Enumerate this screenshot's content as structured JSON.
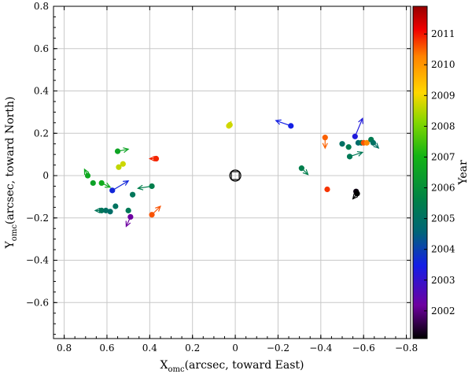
{
  "chart_data": {
    "type": "scatter",
    "title": "",
    "xlabel_main": "X",
    "xlabel_sub": "omc",
    "xlabel_rest": "(arcsec, toward East)",
    "ylabel_main": "Y",
    "ylabel_sub": "omc",
    "ylabel_rest": "(arcsec, toward North)",
    "xlim": [
      0.85,
      -0.82
    ],
    "ylim": [
      -0.77,
      0.8
    ],
    "x_inverted": true,
    "grid": true,
    "xticks": [
      0.8,
      0.6,
      0.4,
      0.2,
      0,
      -0.2,
      -0.4,
      -0.6,
      -0.8
    ],
    "xtick_labels": [
      "0.8",
      "0.6",
      "0.4",
      "0.2",
      "0",
      "−0.2",
      "−0.4",
      "−0.6",
      "−0.8"
    ],
    "yticks": [
      0.8,
      0.6,
      0.4,
      0.2,
      0,
      -0.2,
      -0.4,
      -0.6
    ],
    "ytick_labels": [
      "0.8",
      "0.6",
      "0.4",
      "0.2",
      "0",
      "−0.2",
      "−0.4",
      "−0.6"
    ],
    "colorbar": {
      "label": "Year",
      "range": [
        2001.1,
        2011.9
      ],
      "ticks": [
        2002,
        2003,
        2004,
        2005,
        2006,
        2007,
        2008,
        2009,
        2010,
        2011
      ],
      "tick_labels": [
        "2002",
        "2003",
        "2004",
        "2005",
        "2006",
        "2007",
        "2008",
        "2009",
        "2010",
        "2011"
      ]
    },
    "origin_marker": {
      "x": 0,
      "y": 0
    },
    "points": [
      {
        "x": 0.03,
        "y": 0.235,
        "year": 2008.8,
        "dx": -0.01,
        "dy": 0.02
      },
      {
        "x": 0.025,
        "y": 0.24,
        "year": 2008.7,
        "dx": 0,
        "dy": 0
      },
      {
        "x": -0.26,
        "y": 0.235,
        "year": 2003.5,
        "dx": 0.07,
        "dy": 0.025
      },
      {
        "x": 0.55,
        "y": 0.115,
        "year": 2006.6,
        "dx": -0.05,
        "dy": 0.01
      },
      {
        "x": 0.525,
        "y": 0.055,
        "year": 2008.7,
        "dx": 0,
        "dy": 0
      },
      {
        "x": 0.545,
        "y": 0.04,
        "year": 2008.6,
        "dx": 0,
        "dy": 0
      },
      {
        "x": 0.69,
        "y": 0.0,
        "year": 2006.7,
        "dx": 0.015,
        "dy": 0.03
      },
      {
        "x": 0.665,
        "y": -0.035,
        "year": 2006.5,
        "dx": 0,
        "dy": 0
      },
      {
        "x": 0.625,
        "y": -0.035,
        "year": 2006.8,
        "dx": -0.04,
        "dy": -0.02
      },
      {
        "x": 0.575,
        "y": -0.07,
        "year": 2003.6,
        "dx": -0.075,
        "dy": 0.045
      },
      {
        "x": 0.39,
        "y": -0.05,
        "year": 2005.5,
        "dx": 0.065,
        "dy": -0.01
      },
      {
        "x": 0.48,
        "y": -0.09,
        "year": 2005.2,
        "dx": 0,
        "dy": 0
      },
      {
        "x": 0.37,
        "y": 0.08,
        "year": 2010.9,
        "dx": 0.03,
        "dy": 0
      },
      {
        "x": 0.39,
        "y": -0.185,
        "year": 2010.6,
        "dx": -0.04,
        "dy": 0.04
      },
      {
        "x": 0.49,
        "y": -0.195,
        "year": 2002.2,
        "dx": 0.02,
        "dy": -0.045
      },
      {
        "x": 0.625,
        "y": -0.165,
        "year": 2005.2,
        "dx": 0.03,
        "dy": 0
      },
      {
        "x": 0.605,
        "y": -0.165,
        "year": 2005.0,
        "dx": 0,
        "dy": 0
      },
      {
        "x": 0.585,
        "y": -0.17,
        "year": 2004.9,
        "dx": 0,
        "dy": 0
      },
      {
        "x": 0.56,
        "y": -0.145,
        "year": 2005.1,
        "dx": 0,
        "dy": 0
      },
      {
        "x": 0.5,
        "y": -0.165,
        "year": 2005.3,
        "dx": 0,
        "dy": 0
      },
      {
        "x": -0.31,
        "y": 0.035,
        "year": 2005.5,
        "dx": -0.03,
        "dy": -0.03
      },
      {
        "x": -0.43,
        "y": -0.065,
        "year": 2010.8,
        "dx": 0,
        "dy": 0
      },
      {
        "x": -0.42,
        "y": 0.18,
        "year": 2010.5,
        "dx": 0,
        "dy": -0.05
      },
      {
        "x": -0.565,
        "y": -0.075,
        "year": 2001.2,
        "dx": 0,
        "dy": 0
      },
      {
        "x": -0.57,
        "y": -0.085,
        "year": 2001.1,
        "dx": 0.02,
        "dy": -0.025
      },
      {
        "x": -0.56,
        "y": 0.185,
        "year": 2003.3,
        "dx": -0.035,
        "dy": 0.085
      },
      {
        "x": -0.5,
        "y": 0.15,
        "year": 2005.0,
        "dx": 0,
        "dy": 0
      },
      {
        "x": -0.53,
        "y": 0.135,
        "year": 2005.4,
        "dx": 0,
        "dy": 0
      },
      {
        "x": -0.535,
        "y": 0.09,
        "year": 2005.3,
        "dx": -0.06,
        "dy": 0.02
      },
      {
        "x": -0.575,
        "y": 0.155,
        "year": 2004.8,
        "dx": 0,
        "dy": 0
      },
      {
        "x": -0.59,
        "y": 0.155,
        "year": 2005.2,
        "dx": 0,
        "dy": 0
      },
      {
        "x": -0.6,
        "y": 0.155,
        "year": 2010.6,
        "dx": 0,
        "dy": 0
      },
      {
        "x": -0.615,
        "y": 0.155,
        "year": 2010.2,
        "dx": 0,
        "dy": 0
      },
      {
        "x": -0.635,
        "y": 0.17,
        "year": 2005.4,
        "dx": 0,
        "dy": 0
      },
      {
        "x": -0.645,
        "y": 0.155,
        "year": 2005.0,
        "dx": -0.025,
        "dy": -0.025
      }
    ]
  }
}
